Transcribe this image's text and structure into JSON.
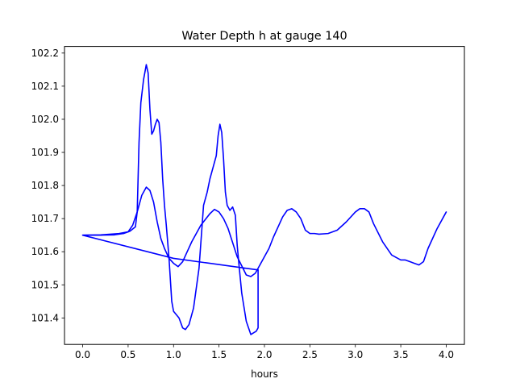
{
  "chart_data": {
    "type": "line",
    "title": "Water Depth h at gauge 140",
    "xlabel": "hours",
    "ylabel": "",
    "xlim": [
      -0.2,
      4.2
    ],
    "ylim": [
      101.32,
      102.22
    ],
    "xticks": [
      0.0,
      0.5,
      1.0,
      1.5,
      2.0,
      2.5,
      3.0,
      3.5,
      4.0
    ],
    "xtick_labels": [
      "0.0",
      "0.5",
      "1.0",
      "1.5",
      "2.0",
      "2.5",
      "3.0",
      "3.5",
      "4.0"
    ],
    "yticks": [
      101.4,
      101.5,
      101.6,
      101.7,
      101.8,
      101.9,
      102.0,
      102.1,
      102.2
    ],
    "ytick_labels": [
      "101.4",
      "101.5",
      "101.6",
      "101.7",
      "101.8",
      "101.9",
      "102.0",
      "102.1",
      "102.2"
    ],
    "grid": false,
    "series": [
      {
        "color": "#0000ff",
        "x": [
          0.0,
          0.2,
          0.35,
          0.45,
          0.52,
          0.58,
          0.6,
          0.62,
          0.64,
          0.67,
          0.7,
          0.72,
          0.74,
          0.76,
          0.78,
          0.8,
          0.82,
          0.84,
          0.86,
          0.88,
          0.9,
          0.92,
          0.95,
          0.98,
          1.0,
          1.03,
          1.06,
          1.1,
          1.13,
          1.17,
          1.22,
          1.28,
          1.33,
          1.37,
          1.4,
          1.44,
          1.47,
          1.49,
          1.51,
          1.53,
          1.55,
          1.57,
          1.59,
          1.62,
          1.65,
          1.68,
          1.7,
          1.72,
          1.75,
          1.8,
          1.85,
          1.88,
          1.91,
          1.93,
          1.93,
          1.93
        ],
        "y": [
          101.65,
          101.65,
          101.651,
          101.655,
          101.662,
          101.675,
          101.72,
          101.93,
          102.05,
          102.12,
          102.165,
          102.14,
          102.03,
          101.955,
          101.965,
          101.985,
          102.0,
          101.99,
          101.93,
          101.82,
          101.74,
          101.68,
          101.58,
          101.45,
          101.42,
          101.41,
          101.4,
          101.37,
          101.365,
          101.38,
          101.43,
          101.55,
          101.74,
          101.78,
          101.82,
          101.86,
          101.89,
          101.95,
          101.985,
          101.96,
          101.88,
          101.78,
          101.74,
          101.725,
          101.735,
          101.71,
          101.62,
          101.56,
          101.475,
          101.39,
          101.35,
          101.355,
          101.36,
          101.37,
          101.545,
          101.545
        ]
      },
      {
        "color": "#0000ff",
        "x": [
          1.93,
          1.0,
          0.0,
          0.2,
          0.4,
          0.5,
          0.55,
          0.6,
          0.65,
          0.7,
          0.74,
          0.78,
          0.82,
          0.86,
          0.9,
          0.95,
          1.0,
          1.05,
          1.1,
          1.15,
          1.2,
          1.3,
          1.4,
          1.45,
          1.5,
          1.55,
          1.6,
          1.7,
          1.8,
          1.85,
          1.9,
          1.95,
          2.0,
          2.05,
          2.1,
          2.15,
          2.2,
          2.25,
          2.3,
          2.35,
          2.4,
          2.45,
          2.5,
          2.55,
          2.6,
          2.7,
          2.8,
          2.9,
          3.0,
          3.05,
          3.1,
          3.15,
          3.2,
          3.3,
          3.4,
          3.5,
          3.55,
          3.6,
          3.65,
          3.7,
          3.75,
          3.8,
          3.9,
          4.0
        ],
        "y": [
          101.545,
          101.58,
          101.65,
          101.651,
          101.655,
          101.66,
          101.68,
          101.72,
          101.77,
          101.795,
          101.785,
          101.75,
          101.69,
          101.64,
          101.61,
          101.58,
          101.565,
          101.555,
          101.57,
          101.6,
          101.63,
          101.68,
          101.715,
          101.728,
          101.72,
          101.7,
          101.67,
          101.585,
          101.53,
          101.525,
          101.535,
          101.56,
          101.585,
          101.61,
          101.645,
          101.675,
          101.705,
          101.725,
          101.73,
          101.72,
          101.7,
          101.665,
          101.655,
          101.655,
          101.653,
          101.655,
          101.665,
          101.69,
          101.72,
          101.73,
          101.73,
          101.72,
          101.685,
          101.63,
          101.59,
          101.575,
          101.575,
          101.57,
          101.565,
          101.56,
          101.57,
          101.61,
          101.67,
          101.72
        ]
      }
    ]
  }
}
